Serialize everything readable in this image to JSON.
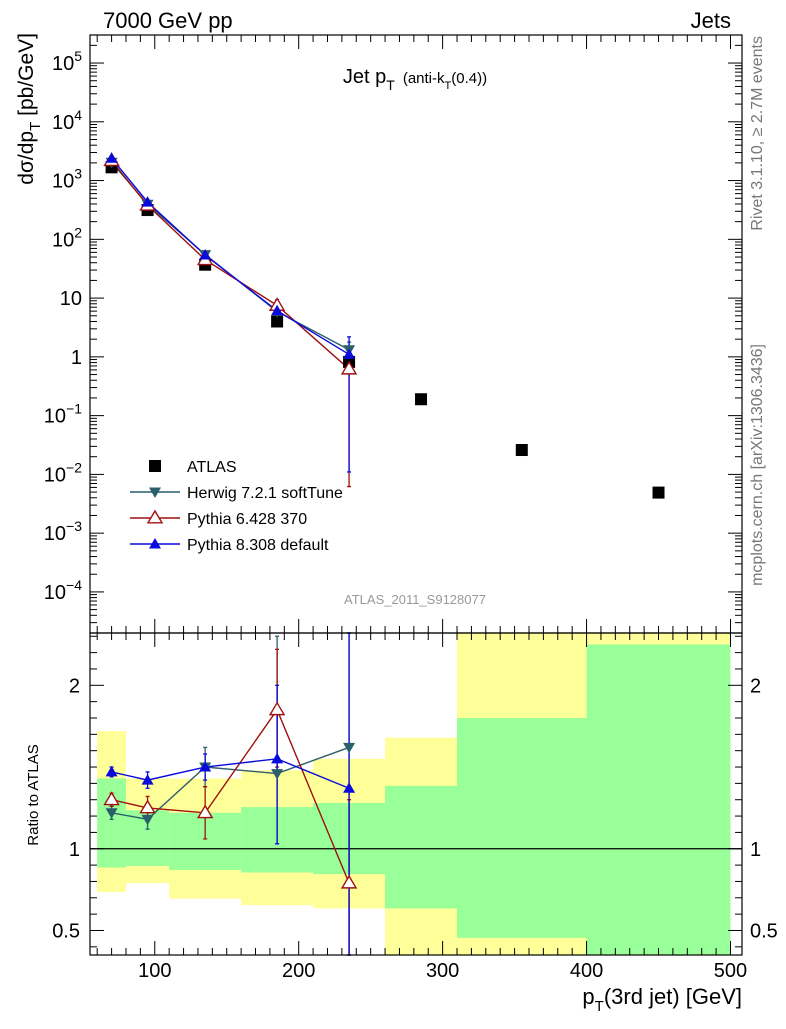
{
  "header": {
    "beam_label": "7000 GeV pp",
    "category_label": "Jets",
    "rivet_label": "Rivet 3.1.10, ≥ 2.7M events",
    "source_label": "mcplots.cern.ch [arXiv:1306.3436]",
    "analysis_label": "ATLAS_2011_S9128077"
  },
  "chart_data": [
    {
      "type": "scatter",
      "panel": "main",
      "title_main": "Jet p",
      "title_sub": "T",
      "title_detail_pre": "(anti-k",
      "title_detail_sub": "T",
      "title_detail_post": "(0.4))",
      "ylabel": "dσ/dp",
      "ylabel_sub": "T",
      "ylabel_unit": " [pb/GeV]",
      "yscale": "log",
      "xlim": [
        55,
        508
      ],
      "ylim": [
        2e-05,
        300000
      ],
      "y_ticks": [
        {
          "v": 100000,
          "base": "10",
          "exp": "5"
        },
        {
          "v": 10000,
          "base": "10",
          "exp": "4"
        },
        {
          "v": 1000,
          "base": "10",
          "exp": "3"
        },
        {
          "v": 100,
          "base": "10",
          "exp": "2"
        },
        {
          "v": 10,
          "base": "10",
          "exp": ""
        },
        {
          "v": 1,
          "base": "1",
          "exp": ""
        },
        {
          "v": 0.1,
          "base": "10",
          "exp": "−1"
        },
        {
          "v": 0.01,
          "base": "10",
          "exp": "−2"
        },
        {
          "v": 0.001,
          "base": "10",
          "exp": "−3"
        },
        {
          "v": 0.0001,
          "base": "10",
          "exp": "−4"
        }
      ],
      "legend_position": "bottom-left",
      "series": [
        {
          "name": "ATLAS",
          "color": "#000000",
          "marker": "square",
          "x": [
            70,
            95,
            135,
            185,
            235,
            285,
            355,
            450
          ],
          "y": [
            1680,
            315,
            37,
            4.0,
            0.82,
            0.19,
            0.026,
            0.0049
          ]
        },
        {
          "name": "Herwig 7.2.1 softTune",
          "color": "#2a5f6b",
          "marker": "triangle-down",
          "x": [
            70,
            95,
            135,
            185,
            235
          ],
          "y": [
            2050,
            395,
            55,
            5.9,
            1.32
          ],
          "yerr": [
            0.08,
            0.08,
            0.08,
            0.2,
            0.35
          ]
        },
        {
          "name": "Pythia 6.428 370",
          "color": "#a01010",
          "marker": "triangle-open",
          "x": [
            70,
            95,
            135,
            185,
            235
          ],
          "y": [
            2180,
            380,
            45,
            7.5,
            0.62
          ],
          "yerr": [
            0.08,
            0.08,
            0.12,
            0.25,
            0.99
          ]
        },
        {
          "name": "Pythia 8.308 default",
          "color": "#0a0adc",
          "marker": "triangle-up",
          "x": [
            70,
            95,
            135,
            185,
            235
          ],
          "y": [
            2400,
            430,
            54,
            6.1,
            1.1
          ],
          "yerr": [
            0.05,
            0.06,
            0.08,
            0.3,
            0.99
          ]
        }
      ]
    },
    {
      "type": "scatter",
      "panel": "ratio",
      "ylabel": "Ratio to ATLAS",
      "xlabel": "p",
      "xlabel_sub": "T",
      "xlabel_rest": "(3rd jet) [GeV]",
      "xlim": [
        55,
        508
      ],
      "ylim": [
        0.35,
        2.32
      ],
      "y_ticks": [
        0.5,
        1,
        2
      ],
      "x_ticks": [
        100,
        200,
        300,
        400,
        500
      ],
      "reference_line": 1,
      "bands": [
        {
          "x0": 60,
          "x1": 80,
          "green": [
            0.885,
            1.43
          ],
          "yellow": [
            0.735,
            1.72
          ]
        },
        {
          "x0": 80,
          "x1": 110,
          "green": [
            0.895,
            1.235
          ],
          "yellow": [
            0.79,
            1.43
          ]
        },
        {
          "x0": 110,
          "x1": 160,
          "green": [
            0.87,
            1.22
          ],
          "yellow": [
            0.695,
            1.43
          ]
        },
        {
          "x0": 160,
          "x1": 210,
          "green": [
            0.855,
            1.255
          ],
          "yellow": [
            0.655,
            1.48
          ]
        },
        {
          "x0": 210,
          "x1": 260,
          "green": [
            0.845,
            1.28
          ],
          "yellow": [
            0.635,
            1.55
          ]
        },
        {
          "x0": 260,
          "x1": 310,
          "green": [
            0.635,
            1.385
          ],
          "yellow": [
            0.33,
            1.68
          ]
        },
        {
          "x0": 310,
          "x1": 400,
          "green": [
            0.455,
            1.8
          ],
          "yellow": [
            0.33,
            2.35
          ]
        },
        {
          "x0": 400,
          "x1": 500,
          "green": [
            0.33,
            2.25
          ],
          "yellow": [
            0.33,
            2.35
          ]
        }
      ],
      "series": [
        {
          "name": "Herwig 7.2.1 softTune",
          "color": "#2a5f6b",
          "marker": "triangle-down",
          "x": [
            70,
            95,
            135,
            185,
            235
          ],
          "y": [
            1.22,
            1.18,
            1.5,
            1.46,
            1.62
          ],
          "err": [
            [
              1.18,
              1.26
            ],
            [
              1.12,
              1.24
            ],
            [
              1.38,
              1.62
            ],
            [
              1.03,
              2.3
            ],
            [
              0.33,
              2.35
            ]
          ]
        },
        {
          "name": "Pythia 6.428 370",
          "color": "#a01010",
          "marker": "triangle-open",
          "x": [
            70,
            95,
            135,
            185,
            235
          ],
          "y": [
            1.3,
            1.25,
            1.22,
            1.85,
            0.79
          ],
          "err": [
            [
              1.26,
              1.34
            ],
            [
              1.18,
              1.32
            ],
            [
              1.06,
              1.38
            ],
            [
              1.5,
              2.22
            ],
            [
              0.33,
              1.3
            ]
          ]
        },
        {
          "name": "Pythia 8.308 default",
          "color": "#0a0adc",
          "marker": "triangle-up",
          "x": [
            70,
            95,
            135,
            185,
            235
          ],
          "y": [
            1.47,
            1.42,
            1.5,
            1.55,
            1.37
          ],
          "err": [
            [
              1.44,
              1.5
            ],
            [
              1.37,
              1.47
            ],
            [
              1.42,
              1.58
            ],
            [
              1.03,
              2.0
            ],
            [
              0.33,
              2.35
            ]
          ]
        }
      ]
    }
  ]
}
